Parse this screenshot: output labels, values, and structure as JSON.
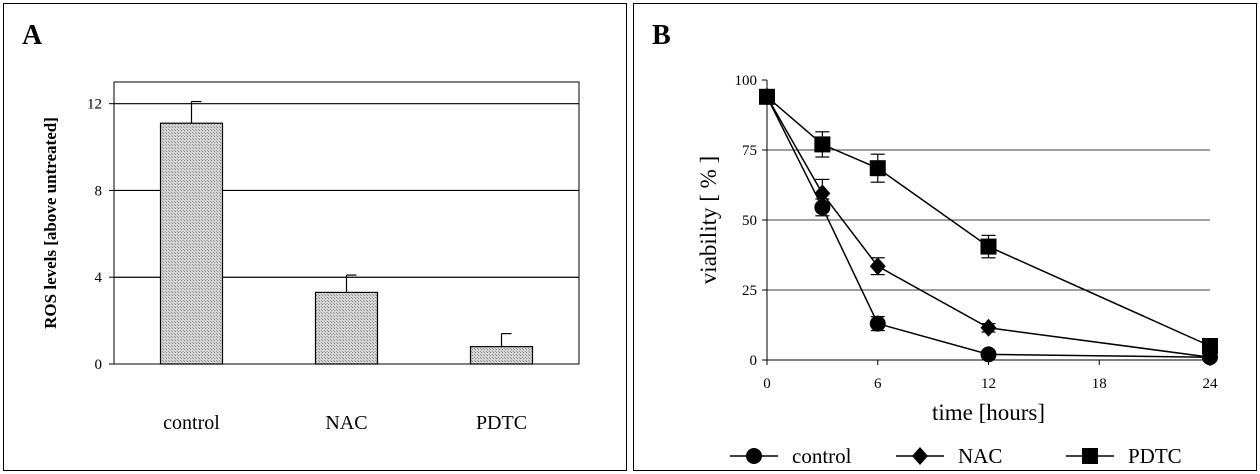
{
  "panels": {
    "a": {
      "letter": "A"
    },
    "b": {
      "letter": "B"
    }
  },
  "chart_data": [
    {
      "type": "bar",
      "panel": "A",
      "title": "",
      "xlabel": "",
      "ylabel": "ROS levels [above untreated]",
      "categories": [
        "control",
        "NAC",
        "PDTC"
      ],
      "values": [
        11.1,
        3.3,
        0.8
      ],
      "errors": [
        1.0,
        0.8,
        0.6
      ],
      "ylim": [
        0,
        13
      ],
      "yticks": [
        0,
        4,
        8,
        12
      ],
      "ytick_labels": [
        "0",
        "4",
        "8",
        "12"
      ],
      "grid": true,
      "bar_color": "#c8c8c8"
    },
    {
      "type": "line",
      "panel": "B",
      "title": "",
      "xlabel": "time [hours]",
      "ylabel": "viability [ % ]",
      "xlim": [
        0,
        24
      ],
      "ylim": [
        0,
        100
      ],
      "xticks": [
        0,
        6,
        12,
        18,
        24
      ],
      "xtick_labels": [
        "0",
        "6",
        "12",
        "18",
        "24"
      ],
      "yticks": [
        0,
        25,
        50,
        75,
        100
      ],
      "ytick_labels": [
        "0",
        "25",
        "50",
        "75",
        "100"
      ],
      "grid": true,
      "legend_position": "bottom",
      "series": [
        {
          "name": "control",
          "marker": "circle",
          "x": [
            0,
            3,
            6,
            12,
            24
          ],
          "y": [
            94,
            54.5,
            13,
            2,
            1
          ],
          "err": [
            2,
            3,
            2.5,
            1,
            1
          ]
        },
        {
          "name": "NAC",
          "marker": "diamond",
          "x": [
            0,
            3,
            6,
            12,
            24
          ],
          "y": [
            94,
            59.5,
            33.5,
            11.5,
            1
          ],
          "err": [
            2,
            5,
            3,
            1.5,
            1
          ]
        },
        {
          "name": "PDTC",
          "marker": "square",
          "x": [
            0,
            3,
            6,
            12,
            24
          ],
          "y": [
            94,
            77,
            68.5,
            40.5,
            5
          ],
          "err": [
            2,
            4.5,
            5,
            4,
            1.5
          ]
        }
      ]
    }
  ]
}
